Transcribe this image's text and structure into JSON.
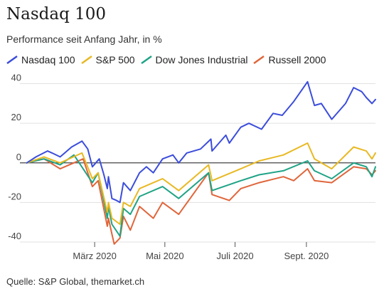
{
  "header": {
    "title": "Nasdaq 100",
    "subtitle": "Performance seit Anfang Jahr, in %"
  },
  "source": "Quelle: S&P Global, themarket.ch",
  "colors": {
    "Nasdaq 100": "#3b4ddb",
    "S&P 500": "#e8b923",
    "Dow Jones Industrial": "#1fa386",
    "Russell 2000": "#e0653a"
  },
  "chart_data": {
    "type": "line",
    "ylabel": "",
    "xlabel": "",
    "ylim": [
      -40,
      42
    ],
    "yticks": [
      40,
      20,
      0,
      -20,
      -40
    ],
    "xlim": [
      "2020-01-01",
      "2020-10-31"
    ],
    "xticks": [
      {
        "label": "März 2020",
        "x": "2020-03-01"
      },
      {
        "label": "Mai 2020",
        "x": "2020-05-01"
      },
      {
        "label": "Juli 2020",
        "x": "2020-07-01"
      },
      {
        "label": "Sept. 2020",
        "x": "2020-09-01"
      }
    ],
    "grid": true,
    "legend": "top",
    "series": [
      {
        "name": "Nasdaq 100",
        "points": [
          [
            "2020-01-02",
            0
          ],
          [
            "2020-01-10",
            3
          ],
          [
            "2020-01-20",
            6
          ],
          [
            "2020-01-24",
            5
          ],
          [
            "2020-01-31",
            3
          ],
          [
            "2020-02-10",
            8
          ],
          [
            "2020-02-19",
            11
          ],
          [
            "2020-02-24",
            7
          ],
          [
            "2020-02-28",
            -2
          ],
          [
            "2020-03-05",
            2
          ],
          [
            "2020-03-09",
            -6
          ],
          [
            "2020-03-12",
            -13
          ],
          [
            "2020-03-13",
            -7
          ],
          [
            "2020-03-16",
            -18
          ],
          [
            "2020-03-20",
            -19
          ],
          [
            "2020-03-23",
            -20
          ],
          [
            "2020-03-26",
            -10
          ],
          [
            "2020-04-01",
            -14
          ],
          [
            "2020-04-09",
            -5
          ],
          [
            "2020-04-15",
            -2
          ],
          [
            "2020-04-21",
            -5
          ],
          [
            "2020-04-29",
            2
          ],
          [
            "2020-05-08",
            4
          ],
          [
            "2020-05-13",
            0
          ],
          [
            "2020-05-20",
            5
          ],
          [
            "2020-06-01",
            7
          ],
          [
            "2020-06-10",
            12
          ],
          [
            "2020-06-11",
            6
          ],
          [
            "2020-06-23",
            14
          ],
          [
            "2020-06-26",
            10
          ],
          [
            "2020-07-06",
            18
          ],
          [
            "2020-07-13",
            20
          ],
          [
            "2020-07-24",
            17
          ],
          [
            "2020-08-03",
            25
          ],
          [
            "2020-08-11",
            24
          ],
          [
            "2020-08-21",
            31
          ],
          [
            "2020-09-02",
            41
          ],
          [
            "2020-09-08",
            29
          ],
          [
            "2020-09-14",
            30
          ],
          [
            "2020-09-23",
            22
          ],
          [
            "2020-10-05",
            30
          ],
          [
            "2020-10-12",
            38
          ],
          [
            "2020-10-19",
            36
          ],
          [
            "2020-10-23",
            33
          ],
          [
            "2020-10-28",
            30
          ],
          [
            "2020-10-31",
            32
          ]
        ]
      },
      {
        "name": "S&P 500",
        "points": [
          [
            "2020-01-02",
            0
          ],
          [
            "2020-01-17",
            3
          ],
          [
            "2020-01-31",
            0
          ],
          [
            "2020-02-19",
            5
          ],
          [
            "2020-02-28",
            -8
          ],
          [
            "2020-03-04",
            -5
          ],
          [
            "2020-03-12",
            -25
          ],
          [
            "2020-03-13",
            -20
          ],
          [
            "2020-03-16",
            -28
          ],
          [
            "2020-03-23",
            -31
          ],
          [
            "2020-03-26",
            -20
          ],
          [
            "2020-04-01",
            -22
          ],
          [
            "2020-04-09",
            -13
          ],
          [
            "2020-04-29",
            -8
          ],
          [
            "2020-05-13",
            -14
          ],
          [
            "2020-06-08",
            -1
          ],
          [
            "2020-06-11",
            -9
          ],
          [
            "2020-07-06",
            -3
          ],
          [
            "2020-07-22",
            1
          ],
          [
            "2020-08-12",
            4
          ],
          [
            "2020-09-02",
            10
          ],
          [
            "2020-09-08",
            2
          ],
          [
            "2020-09-23",
            -3
          ],
          [
            "2020-10-12",
            8
          ],
          [
            "2020-10-23",
            6
          ],
          [
            "2020-10-28",
            2
          ],
          [
            "2020-10-31",
            5
          ]
        ]
      },
      {
        "name": "Dow Jones Industrial",
        "points": [
          [
            "2020-01-02",
            0
          ],
          [
            "2020-01-17",
            2
          ],
          [
            "2020-01-31",
            -1
          ],
          [
            "2020-02-12",
            4
          ],
          [
            "2020-02-28",
            -10
          ],
          [
            "2020-03-04",
            -5
          ],
          [
            "2020-03-12",
            -28
          ],
          [
            "2020-03-13",
            -22
          ],
          [
            "2020-03-16",
            -31
          ],
          [
            "2020-03-23",
            -37
          ],
          [
            "2020-03-26",
            -23
          ],
          [
            "2020-04-01",
            -26
          ],
          [
            "2020-04-09",
            -17
          ],
          [
            "2020-04-29",
            -12
          ],
          [
            "2020-05-13",
            -18
          ],
          [
            "2020-06-08",
            -5
          ],
          [
            "2020-06-11",
            -14
          ],
          [
            "2020-07-06",
            -9
          ],
          [
            "2020-07-22",
            -6
          ],
          [
            "2020-08-12",
            -4
          ],
          [
            "2020-09-02",
            1
          ],
          [
            "2020-09-08",
            -4
          ],
          [
            "2020-09-23",
            -8
          ],
          [
            "2020-10-12",
            0
          ],
          [
            "2020-10-23",
            -2
          ],
          [
            "2020-10-28",
            -7
          ],
          [
            "2020-10-31",
            -2
          ]
        ]
      },
      {
        "name": "Russell 2000",
        "points": [
          [
            "2020-01-02",
            0
          ],
          [
            "2020-01-17",
            2
          ],
          [
            "2020-01-31",
            -3
          ],
          [
            "2020-02-20",
            2
          ],
          [
            "2020-02-28",
            -12
          ],
          [
            "2020-03-04",
            -9
          ],
          [
            "2020-03-12",
            -32
          ],
          [
            "2020-03-13",
            -28
          ],
          [
            "2020-03-16",
            -36
          ],
          [
            "2020-03-18",
            -41
          ],
          [
            "2020-03-23",
            -38
          ],
          [
            "2020-03-26",
            -27
          ],
          [
            "2020-04-01",
            -34
          ],
          [
            "2020-04-09",
            -22
          ],
          [
            "2020-04-21",
            -28
          ],
          [
            "2020-04-29",
            -20
          ],
          [
            "2020-05-13",
            -26
          ],
          [
            "2020-06-08",
            -5
          ],
          [
            "2020-06-11",
            -16
          ],
          [
            "2020-06-26",
            -19
          ],
          [
            "2020-07-06",
            -13
          ],
          [
            "2020-07-22",
            -10
          ],
          [
            "2020-08-12",
            -7
          ],
          [
            "2020-08-21",
            -9
          ],
          [
            "2020-09-02",
            -3
          ],
          [
            "2020-09-08",
            -9
          ],
          [
            "2020-09-23",
            -10
          ],
          [
            "2020-10-12",
            -2
          ],
          [
            "2020-10-23",
            -3
          ],
          [
            "2020-10-28",
            -6
          ],
          [
            "2020-10-31",
            -4
          ]
        ]
      }
    ]
  }
}
